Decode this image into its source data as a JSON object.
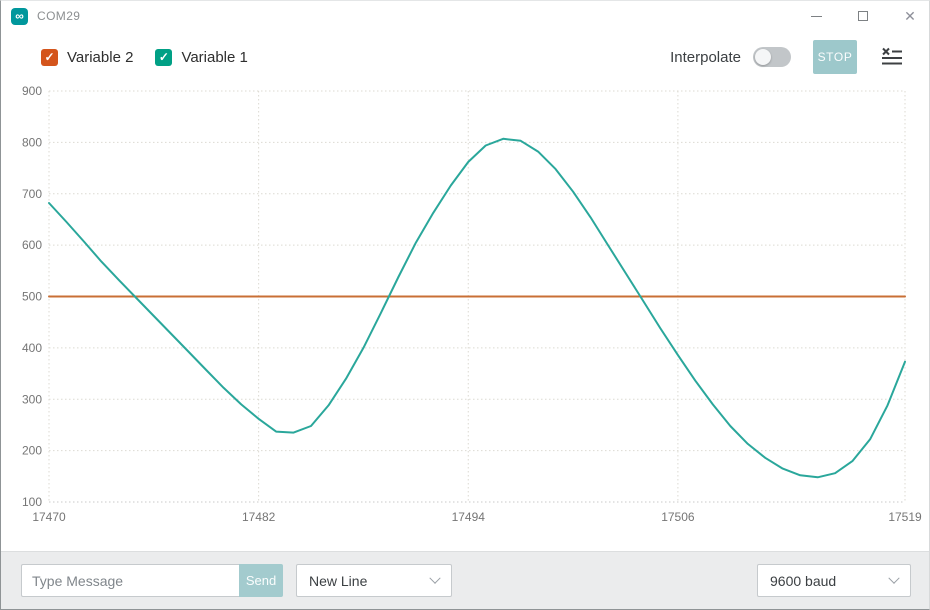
{
  "window": {
    "title": "COM29",
    "app_icon_glyph": "∞",
    "close_glyph": "✕",
    "check_glyph": "✓"
  },
  "toolbar": {
    "legend": [
      {
        "label": "Variable 2",
        "checked": true,
        "swatch_color": "#D4551C"
      },
      {
        "label": "Variable 1",
        "checked": true,
        "swatch_color": "#00A085"
      }
    ],
    "interpolate_label": "Interpolate",
    "interpolate_on": false,
    "stop_label": "STOP"
  },
  "bottom_bar": {
    "message_placeholder": "Type Message",
    "message_value": "",
    "send_label": "Send",
    "line_ending_selected": "New Line",
    "baud_rate_selected": "9600 baud"
  },
  "chart_data": {
    "type": "line",
    "title": "",
    "xlabel": "",
    "ylabel": "",
    "grid": "dotted",
    "legend_position": "top-left",
    "xlim": [
      17470,
      17519
    ],
    "ylim": [
      100,
      900
    ],
    "x_ticks": [
      17470,
      17482,
      17494,
      17506,
      17519
    ],
    "y_ticks": [
      100,
      200,
      300,
      400,
      500,
      600,
      700,
      800,
      900
    ],
    "x": [
      17470,
      17471,
      17472,
      17473,
      17474,
      17475,
      17476,
      17477,
      17478,
      17479,
      17480,
      17481,
      17482,
      17483,
      17484,
      17485,
      17486,
      17487,
      17488,
      17489,
      17490,
      17491,
      17492,
      17493,
      17494,
      17495,
      17496,
      17497,
      17498,
      17499,
      17500,
      17501,
      17502,
      17503,
      17504,
      17505,
      17506,
      17507,
      17508,
      17509,
      17510,
      17511,
      17512,
      17513,
      17514,
      17515,
      17516,
      17517,
      17518,
      17519
    ],
    "series": [
      {
        "name": "Variable 2",
        "color": "#C96F35",
        "values": [
          500,
          500,
          500,
          500,
          500,
          500,
          500,
          500,
          500,
          500,
          500,
          500,
          500,
          500,
          500,
          500,
          500,
          500,
          500,
          500,
          500,
          500,
          500,
          500,
          500,
          500,
          500,
          500,
          500,
          500,
          500,
          500,
          500,
          500,
          500,
          500,
          500,
          500,
          500,
          500,
          500,
          500,
          500,
          500,
          500,
          500,
          500,
          500,
          500,
          500
        ]
      },
      {
        "name": "Variable 1",
        "color": "#2AA79B",
        "values": [
          682,
          645,
          607,
          568,
          532,
          497,
          462,
          427,
          392,
          357,
          322,
          290,
          262,
          237,
          235,
          248,
          288,
          340,
          400,
          468,
          538,
          605,
          663,
          716,
          762,
          794,
          807,
          803,
          782,
          748,
          704,
          654,
          600,
          546,
          492,
          438,
          386,
          336,
          290,
          248,
          213,
          186,
          165,
          152,
          148,
          156,
          180,
          222,
          288,
          373
        ]
      }
    ]
  }
}
